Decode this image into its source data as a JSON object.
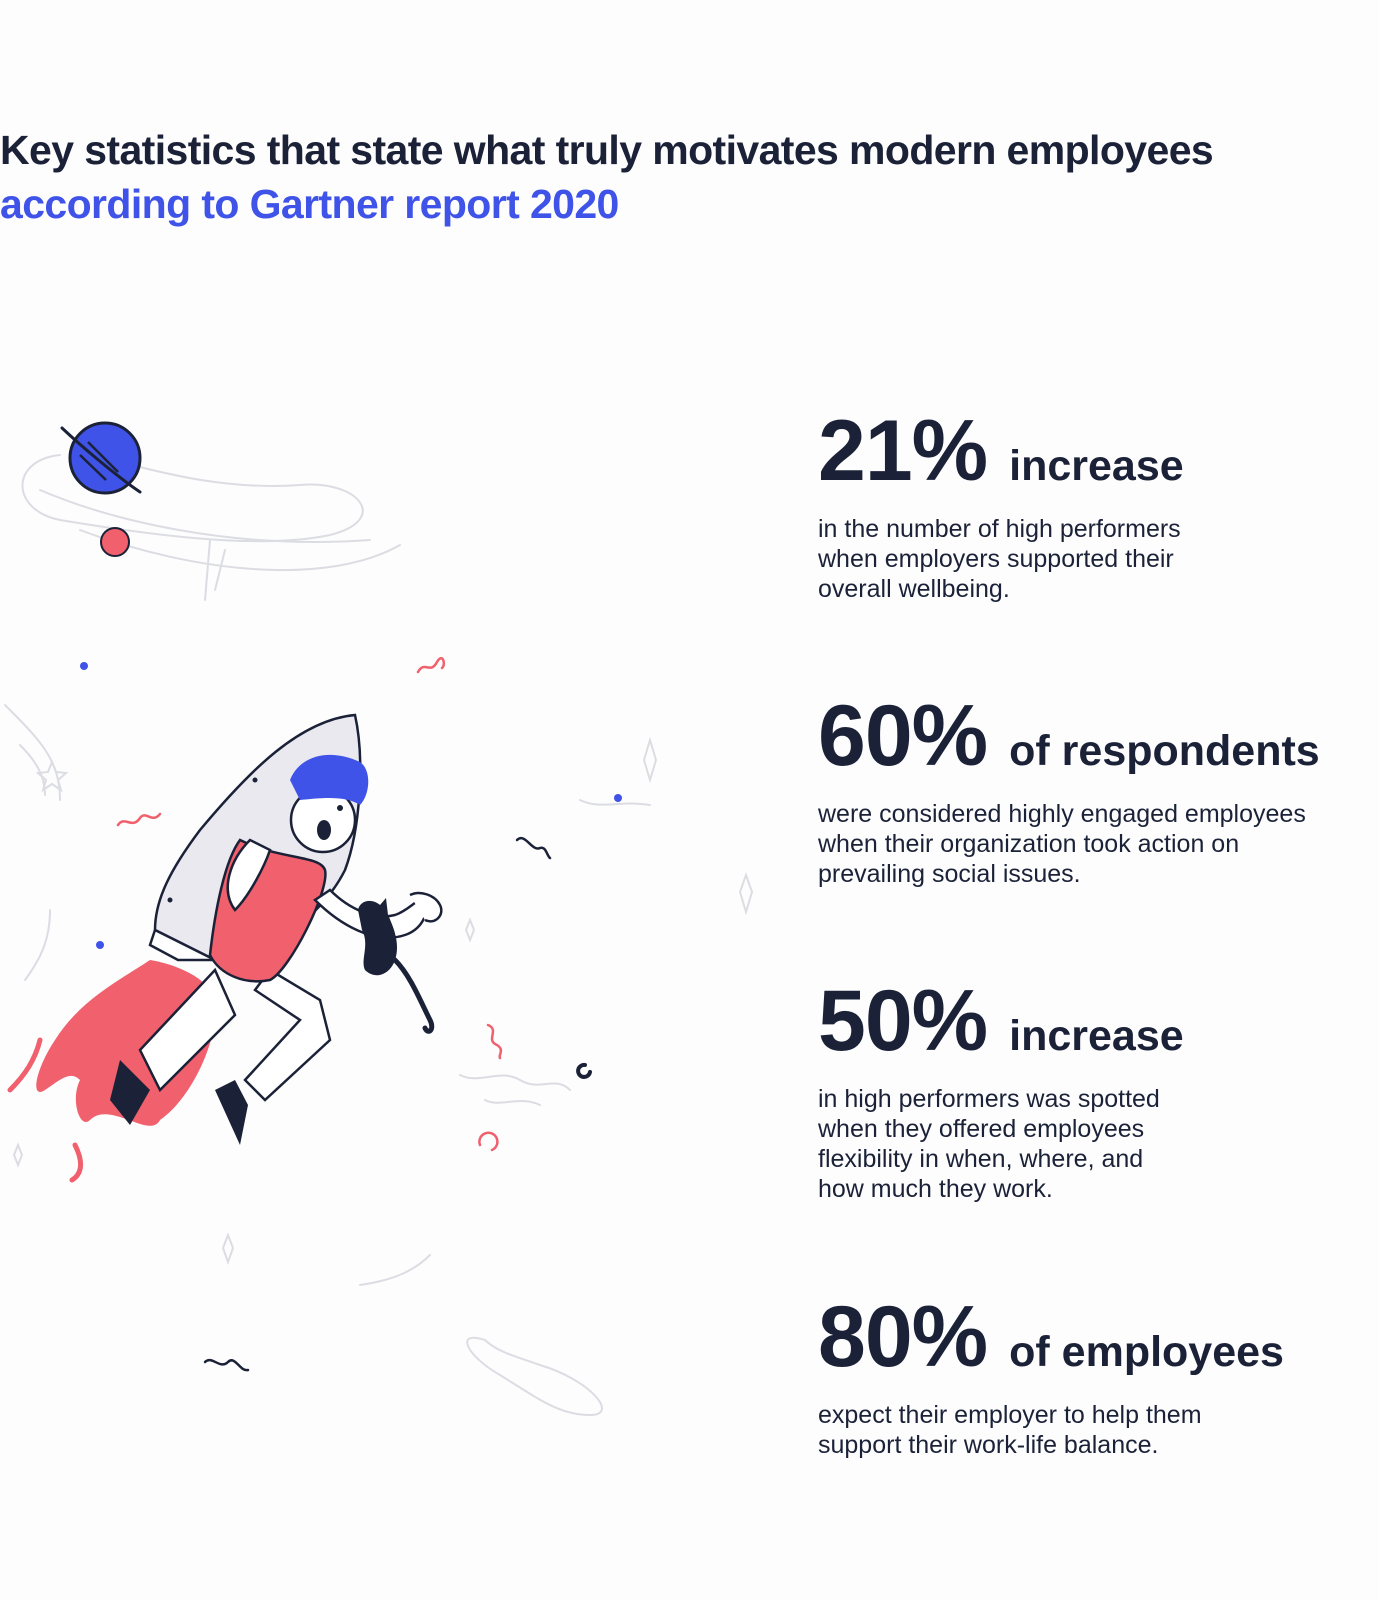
{
  "heading": {
    "line1": "Key statistics that state what truly motivates modern employees",
    "line2": "according to Gartner report 2020"
  },
  "stats": [
    {
      "value": "21%",
      "suffix": "increase",
      "description": "in the number of high performers\nwhen employers supported their\noverall wellbeing."
    },
    {
      "value": "60%",
      "suffix": "of respondents",
      "description": "were considered highly engaged employees\nwhen their organization took action on\nprevailing social issues."
    },
    {
      "value": "50%",
      "suffix": "increase",
      "description": "in high performers was spotted\nwhen they offered employees\nflexibility in when, where, and\nhow much they work."
    },
    {
      "value": "80%",
      "suffix": "of employees",
      "description": "expect their employer to help them\nsupport their work-life balance."
    }
  ],
  "colors": {
    "text_dark": "#1b2238",
    "accent_blue": "#3f53e8",
    "accent_red": "#f0606d",
    "line_gray": "#dcdde3"
  },
  "illustration": {
    "icon": "rocket-boy-with-cat-illustration"
  }
}
